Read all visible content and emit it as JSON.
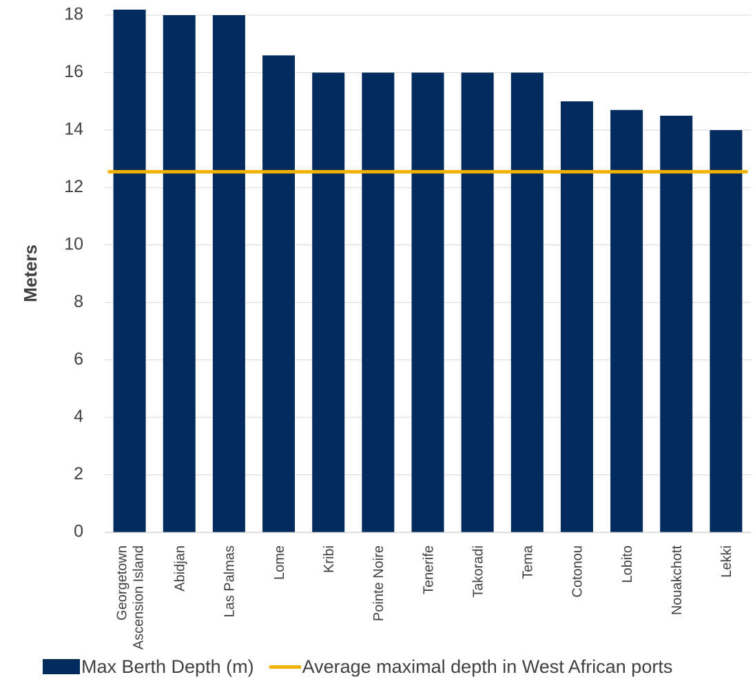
{
  "chart_data": {
    "type": "bar",
    "categories": [
      "Georgetown Ascension Island",
      "Abidjan",
      "Las Palmas",
      "Lome",
      "Kribi",
      "Pointe Noire",
      "Tenerife",
      "Takoradi",
      "Tema",
      "Cotonou",
      "Lobito",
      "Nouakchott",
      "Lekki"
    ],
    "category_lines": [
      [
        "Georgetown",
        "Ascension Island"
      ],
      [
        "Abidjan"
      ],
      [
        "Las Palmas"
      ],
      [
        "Lome"
      ],
      [
        "Kribi"
      ],
      [
        "Pointe Noire"
      ],
      [
        "Tenerife"
      ],
      [
        "Takoradi"
      ],
      [
        "Tema"
      ],
      [
        "Cotonou"
      ],
      [
        "Lobito"
      ],
      [
        "Nouakchott"
      ],
      [
        "Lekki"
      ]
    ],
    "series": [
      {
        "name": "Max Berth Depth (m)",
        "type": "bar",
        "color": "#002B5C",
        "values": [
          18.2,
          18,
          18,
          16.6,
          16,
          16,
          16,
          16,
          16,
          15,
          14.7,
          14.5,
          14
        ]
      },
      {
        "name": "Average maximal depth in West African ports",
        "type": "line",
        "color": "#F2B200",
        "values": [
          12.55,
          12.55,
          12.55,
          12.55,
          12.55,
          12.55,
          12.55,
          12.55,
          12.55,
          12.55,
          12.55,
          12.55,
          12.55
        ]
      }
    ],
    "title": "",
    "xlabel": "",
    "ylabel": "Meters",
    "ylim": [
      0,
      18
    ],
    "yticks": [
      "0",
      "2",
      "4",
      "6",
      "8",
      "10",
      "12",
      "14",
      "16",
      "18"
    ],
    "grid": true,
    "legend_position": "bottom"
  }
}
